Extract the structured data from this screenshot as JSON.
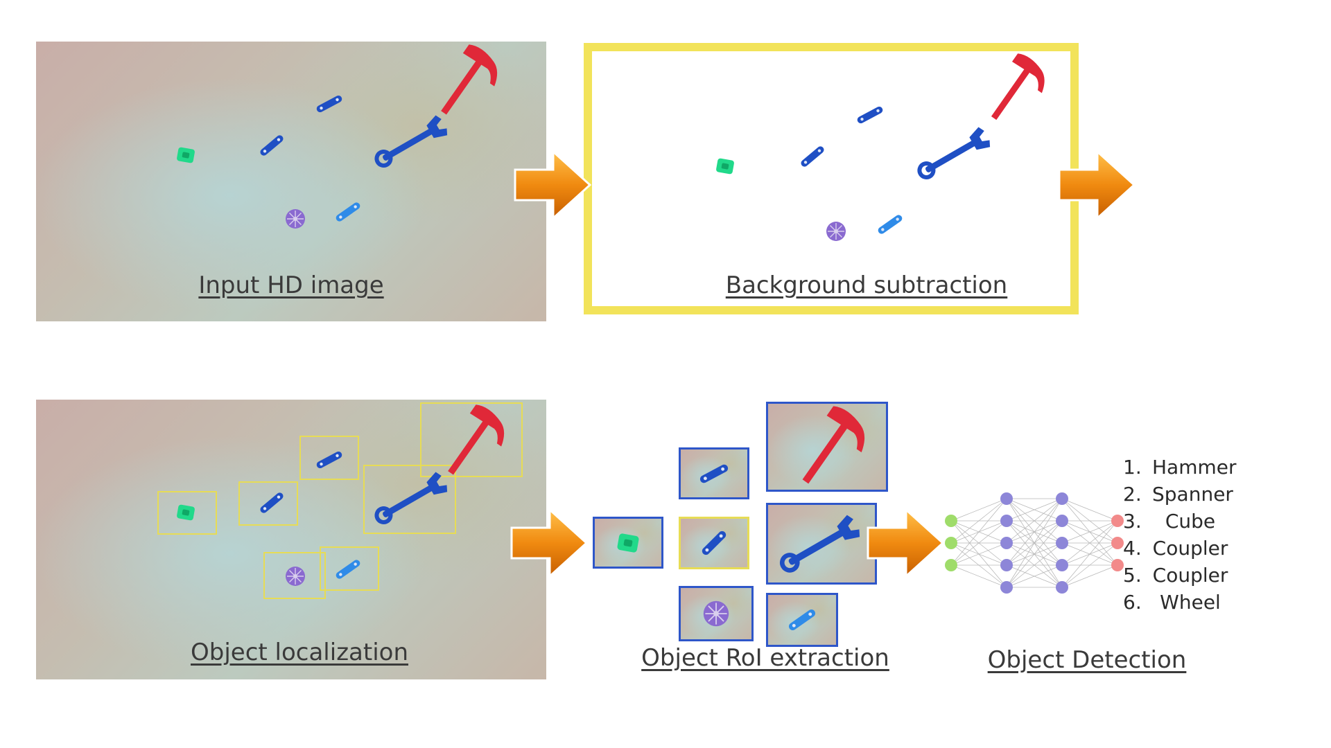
{
  "captions": {
    "input": "Input HD image",
    "background": "Background subtraction",
    "localization": "Object localization",
    "roi": "Object RoI extraction",
    "detection": "Object Detection"
  },
  "results": [
    {
      "num": "1.",
      "label": "Hammer"
    },
    {
      "num": "2.",
      "label": "Spanner"
    },
    {
      "num": "3.",
      "label": "Cube"
    },
    {
      "num": "4.",
      "label": "Coupler"
    },
    {
      "num": "5.",
      "label": "Coupler"
    },
    {
      "num": "6.",
      "label": "Wheel"
    }
  ],
  "colors": {
    "arrow": "#f08a10",
    "highlight": "#f2e35a",
    "roi_border": "#2e56c9",
    "hammer": "#e02838",
    "spanner": "#1f4fc4",
    "coupler": "#1f4fc4",
    "coupler_light": "#2f8be8",
    "cube": "#21d98a",
    "wheel": "#8a6ad0",
    "nn_input": "#9fdc6a",
    "nn_hidden": "#8d86d8",
    "nn_output": "#f28a8a"
  },
  "network": {
    "layers": [
      3,
      5,
      5,
      3
    ]
  }
}
